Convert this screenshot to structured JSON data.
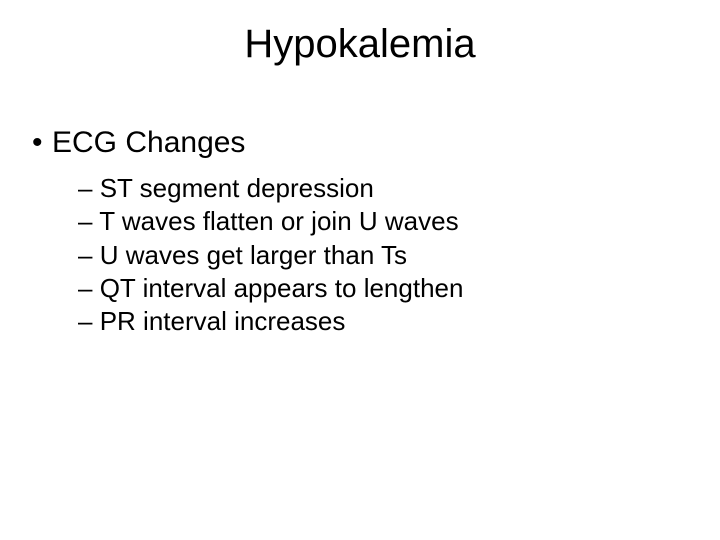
{
  "title": "Hypokalemia",
  "level1": {
    "bullet": "•",
    "text": "ECG Changes"
  },
  "level2": {
    "dash": "–",
    "items": [
      "ST segment depression",
      "T waves flatten or join U waves",
      "U waves get larger than Ts",
      "QT interval appears to lengthen",
      "PR interval increases"
    ]
  },
  "colors": {
    "background": "#ffffff",
    "text": "#000000"
  },
  "typography": {
    "title_fontsize": 40,
    "level1_fontsize": 30,
    "level2_fontsize": 26,
    "font_family": "Arial"
  }
}
